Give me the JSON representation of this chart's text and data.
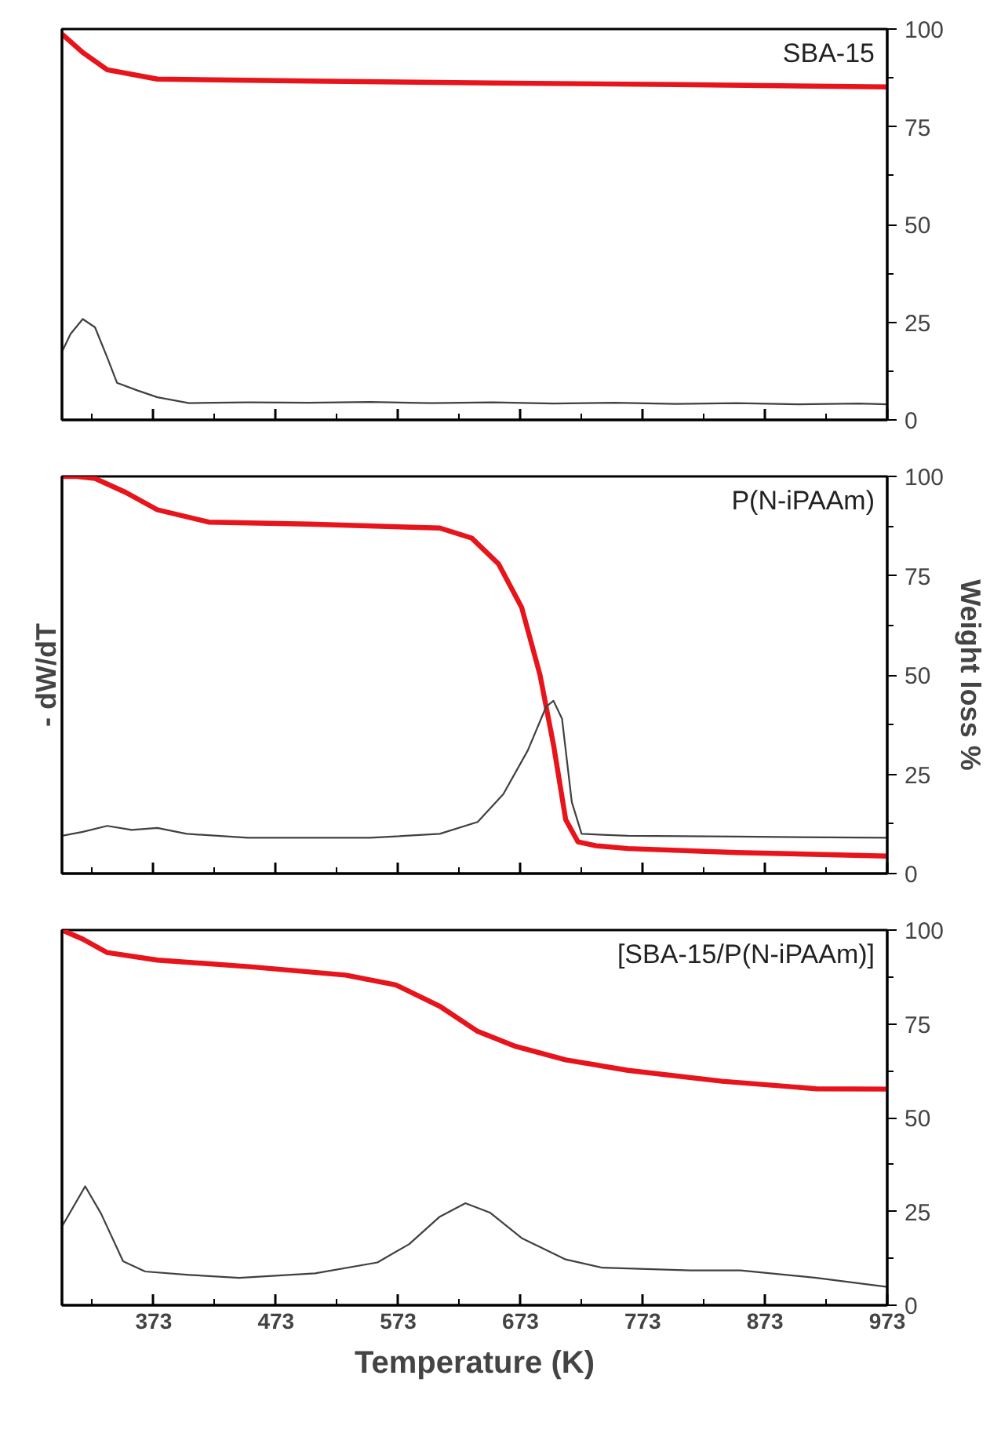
{
  "chart_data": [
    {
      "type": "line",
      "annotations": [
        "SBA-15"
      ],
      "xlim": [
        298,
        973
      ],
      "ylim": [
        0,
        100
      ],
      "tick_labels": "y",
      "grid": false,
      "marker": "none",
      "xticks": [
        {
          "value": 323,
          "label": null
        },
        373,
        {
          "value": 423,
          "label": null
        },
        473,
        {
          "value": 523,
          "label": null
        },
        573,
        {
          "value": 623,
          "label": null
        },
        673,
        {
          "value": 723,
          "label": null
        },
        773,
        {
          "value": 823,
          "label": null
        },
        873,
        {
          "value": 923,
          "label": null
        },
        973
      ],
      "yticks": [
        0,
        {
          "value": 12.5,
          "label": null
        },
        25,
        {
          "value": 37.5,
          "label": null
        },
        50,
        {
          "value": 62.5,
          "label": null
        },
        75,
        {
          "value": 87.5,
          "label": null
        },
        100
      ],
      "series": [
        {
          "color": "#e8141b",
          "x": [
            298,
            315,
            335,
            376,
            500,
            650,
            800,
            973
          ],
          "values": [
            98.7,
            94,
            89.6,
            87.2,
            86.7,
            86.2,
            85.8,
            85.2
          ]
        },
        {
          "color": "#404040",
          "x": [
            298,
            305,
            315,
            325,
            335,
            343,
            360,
            376,
            402,
            450,
            500,
            550,
            600,
            650,
            700,
            750,
            800,
            850,
            900,
            950,
            973
          ],
          "values": [
            17.4,
            22,
            25.8,
            23.7,
            16,
            9.5,
            7.5,
            5.8,
            4.3,
            4.5,
            4.4,
            4.6,
            4.3,
            4.5,
            4.2,
            4.4,
            4.1,
            4.3,
            4.0,
            4.2,
            4.0
          ]
        }
      ]
    },
    {
      "type": "line",
      "annotations": [
        "P(N-iPAAm)"
      ],
      "ylabel": "Weight loss %",
      "y2label": "- dW/dT",
      "xlim": [
        298,
        973
      ],
      "ylim": [
        0,
        100
      ],
      "tick_labels": "y",
      "grid": false,
      "marker": "none",
      "xticks": [
        {
          "value": 323,
          "label": null
        },
        373,
        {
          "value": 423,
          "label": null
        },
        473,
        {
          "value": 523,
          "label": null
        },
        573,
        {
          "value": 623,
          "label": null
        },
        673,
        {
          "value": 723,
          "label": null
        },
        773,
        {
          "value": 823,
          "label": null
        },
        873,
        {
          "value": 923,
          "label": null
        },
        973
      ],
      "yticks": [
        0,
        {
          "value": 12.5,
          "label": null
        },
        25,
        {
          "value": 37.5,
          "label": null
        },
        50,
        {
          "value": 62.5,
          "label": null
        },
        75,
        {
          "value": 87.5,
          "label": null
        },
        100
      ],
      "series": [
        {
          "color": "#e8141b",
          "x": [
            298,
            310,
            325,
            350,
            376,
            418,
            500,
            607,
            633,
            655,
            674,
            689,
            700,
            710,
            720,
            735,
            761,
            850,
            973
          ],
          "values": [
            100,
            100,
            99.5,
            96,
            91.6,
            88.5,
            88,
            87,
            84.5,
            78,
            67,
            50,
            32.5,
            13.6,
            8,
            7,
            6.3,
            5.3,
            4.4
          ]
        },
        {
          "color": "#404040",
          "x": [
            298,
            315,
            335,
            355,
            376,
            400,
            450,
            500,
            550,
            607,
            638,
            659,
            679,
            694,
            700,
            707,
            715,
            723,
            761,
            850,
            973
          ],
          "values": [
            9.5,
            10.5,
            12,
            11,
            11.5,
            10,
            9,
            9,
            9,
            10,
            13,
            20,
            31,
            42,
            43.5,
            39,
            18,
            10,
            9.5,
            9.3,
            9
          ]
        }
      ]
    },
    {
      "type": "line",
      "annotations": [
        "[SBA-15/P(N-iPAAm)]"
      ],
      "xlabel": "Temperature (K)",
      "xlim": [
        298,
        973
      ],
      "ylim": [
        0,
        100
      ],
      "grid": false,
      "marker": "none",
      "xticks": [
        {
          "value": 323,
          "label": null
        },
        373,
        {
          "value": 423,
          "label": null
        },
        473,
        {
          "value": 523,
          "label": null
        },
        573,
        {
          "value": 623,
          "label": null
        },
        673,
        {
          "value": 723,
          "label": null
        },
        773,
        {
          "value": 823,
          "label": null
        },
        873,
        {
          "value": 923,
          "label": null
        },
        973
      ],
      "yticks": [
        0,
        {
          "value": 12.5,
          "label": null
        },
        25,
        {
          "value": 37.5,
          "label": null
        },
        50,
        {
          "value": 62.5,
          "label": null
        },
        75,
        {
          "value": 87.5,
          "label": null
        },
        100
      ],
      "series": [
        {
          "color": "#e8141b",
          "x": [
            298,
            315,
            335,
            376,
            453,
            530,
            571,
            607,
            638,
            669,
            710,
            761,
            838,
            915,
            973
          ],
          "values": [
            100,
            97.6,
            94,
            92,
            90.2,
            88,
            85.4,
            79.7,
            73,
            69,
            65.4,
            62.6,
            59.7,
            57.7,
            57.6
          ]
        },
        {
          "color": "#404040",
          "x": [
            298,
            317,
            330,
            348,
            366,
            402,
            443,
            505,
            556,
            582,
            607,
            628,
            648,
            674,
            710,
            740,
            812,
            853,
            915,
            973
          ],
          "values": [
            21,
            31.7,
            24.4,
            11.7,
            9,
            8.1,
            7.3,
            8.5,
            11.4,
            16.3,
            23.6,
            27.2,
            24.7,
            17.9,
            12.2,
            10,
            9.3,
            9.3,
            7.3,
            4.9
          ]
        }
      ]
    }
  ]
}
